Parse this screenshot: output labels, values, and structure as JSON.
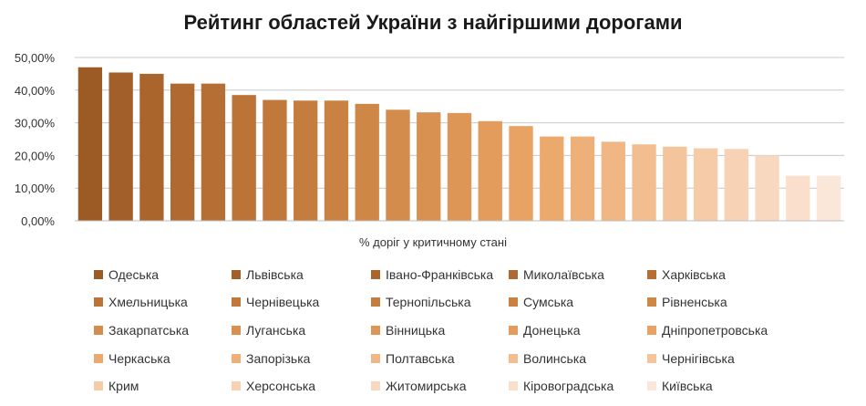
{
  "chart_data": {
    "type": "bar",
    "title": "Рейтинг областей України з найгіршими дорогами",
    "xlabel": "% доріг у критичному стані",
    "ylabel": "",
    "ylim": [
      0,
      50
    ],
    "y_ticks": [
      "0,00%",
      "10,00%",
      "20,00%",
      "30,00%",
      "40,00%",
      "50,00%"
    ],
    "grid": true,
    "legend_position": "bottom",
    "series": [
      {
        "name": "Одеська",
        "value": 47.0,
        "color": "#9c5a25"
      },
      {
        "name": "Львівська",
        "value": 45.4,
        "color": "#a35f29"
      },
      {
        "name": "Івано-Франківська",
        "value": 45.0,
        "color": "#aa652d"
      },
      {
        "name": "Миколаївська",
        "value": 42.0,
        "color": "#b06a31"
      },
      {
        "name": "Харківська",
        "value": 42.0,
        "color": "#b56e34"
      },
      {
        "name": "Хмельницька",
        "value": 38.5,
        "color": "#bb7337"
      },
      {
        "name": "Чернівецька",
        "value": 37.0,
        "color": "#c0783b"
      },
      {
        "name": "Тернопільська",
        "value": 36.8,
        "color": "#c57d3f"
      },
      {
        "name": "Сумська",
        "value": 36.8,
        "color": "#ca8243"
      },
      {
        "name": "Рівненська",
        "value": 35.8,
        "color": "#cf8748"
      },
      {
        "name": "Закарпатська",
        "value": 34.0,
        "color": "#d48c4c"
      },
      {
        "name": "Луганська",
        "value": 33.2,
        "color": "#d89150"
      },
      {
        "name": "Вінницька",
        "value": 33.0,
        "color": "#dd9655"
      },
      {
        "name": "Донецька",
        "value": 30.5,
        "color": "#e39c5c"
      },
      {
        "name": "Дніпропетровська",
        "value": 29.0,
        "color": "#e8a264"
      },
      {
        "name": "Черкаська",
        "value": 25.8,
        "color": "#eba96e"
      },
      {
        "name": "Запорізька",
        "value": 25.8,
        "color": "#eeb079"
      },
      {
        "name": "Полтавська",
        "value": 24.2,
        "color": "#f0b784"
      },
      {
        "name": "Волинська",
        "value": 23.4,
        "color": "#f2be90"
      },
      {
        "name": "Чернігівська",
        "value": 22.7,
        "color": "#f4c59c"
      },
      {
        "name": "Крим",
        "value": 22.2,
        "color": "#f5cba8"
      },
      {
        "name": "Херсонська",
        "value": 22.0,
        "color": "#f7d2b4"
      },
      {
        "name": "Житомирська",
        "value": 20.0,
        "color": "#f8d9c0"
      },
      {
        "name": "Кіровоградська",
        "value": 13.8,
        "color": "#fae0cc"
      },
      {
        "name": "Київська",
        "value": 13.8,
        "color": "#fbe7d9"
      }
    ]
  }
}
